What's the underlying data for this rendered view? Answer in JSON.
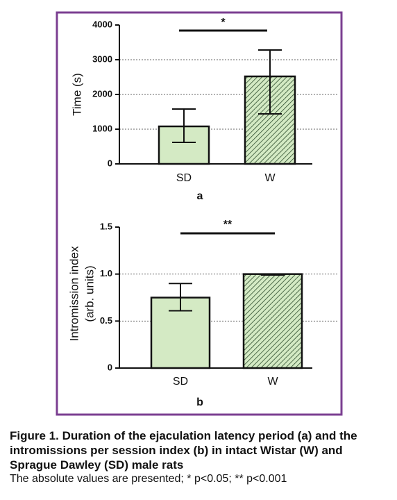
{
  "chart_data": [
    {
      "type": "bar",
      "panel_label": "a",
      "ylabel": "Time (s)",
      "categories": [
        "SD",
        "W"
      ],
      "values": [
        1080,
        2520
      ],
      "error_low": [
        620,
        1440
      ],
      "error_high": [
        1580,
        3280
      ],
      "color": "#d4eac4",
      "patterns": [
        "solid",
        "hatched"
      ],
      "ylim": [
        0,
        4000
      ],
      "yticks": [
        0,
        1000,
        2000,
        3000,
        4000
      ],
      "grid": true,
      "significance": "*"
    },
    {
      "type": "bar",
      "panel_label": "b",
      "ylabel": [
        "Intromission index",
        "(arb. units)"
      ],
      "categories": [
        "SD",
        "W"
      ],
      "values": [
        0.75,
        1.0
      ],
      "error_low": [
        0.61,
        0.99
      ],
      "error_high": [
        0.9,
        1.0
      ],
      "color": "#d4eac4",
      "patterns": [
        "solid",
        "hatched"
      ],
      "ylim": [
        0,
        1.5
      ],
      "yticks": [
        0,
        0.5,
        {
          "value": 1,
          "label": "1.0"
        },
        1.5
      ],
      "grid": true,
      "significance": "**"
    }
  ],
  "caption": {
    "title": "Figure 1. Duration of the ejaculation latency period (a) and the intromissions per session index (b) in intact Wistar (W) and Sprague Dawley (SD) male rats",
    "note": "The absolute values are presented; * p<0.05; ** p<0.001"
  }
}
